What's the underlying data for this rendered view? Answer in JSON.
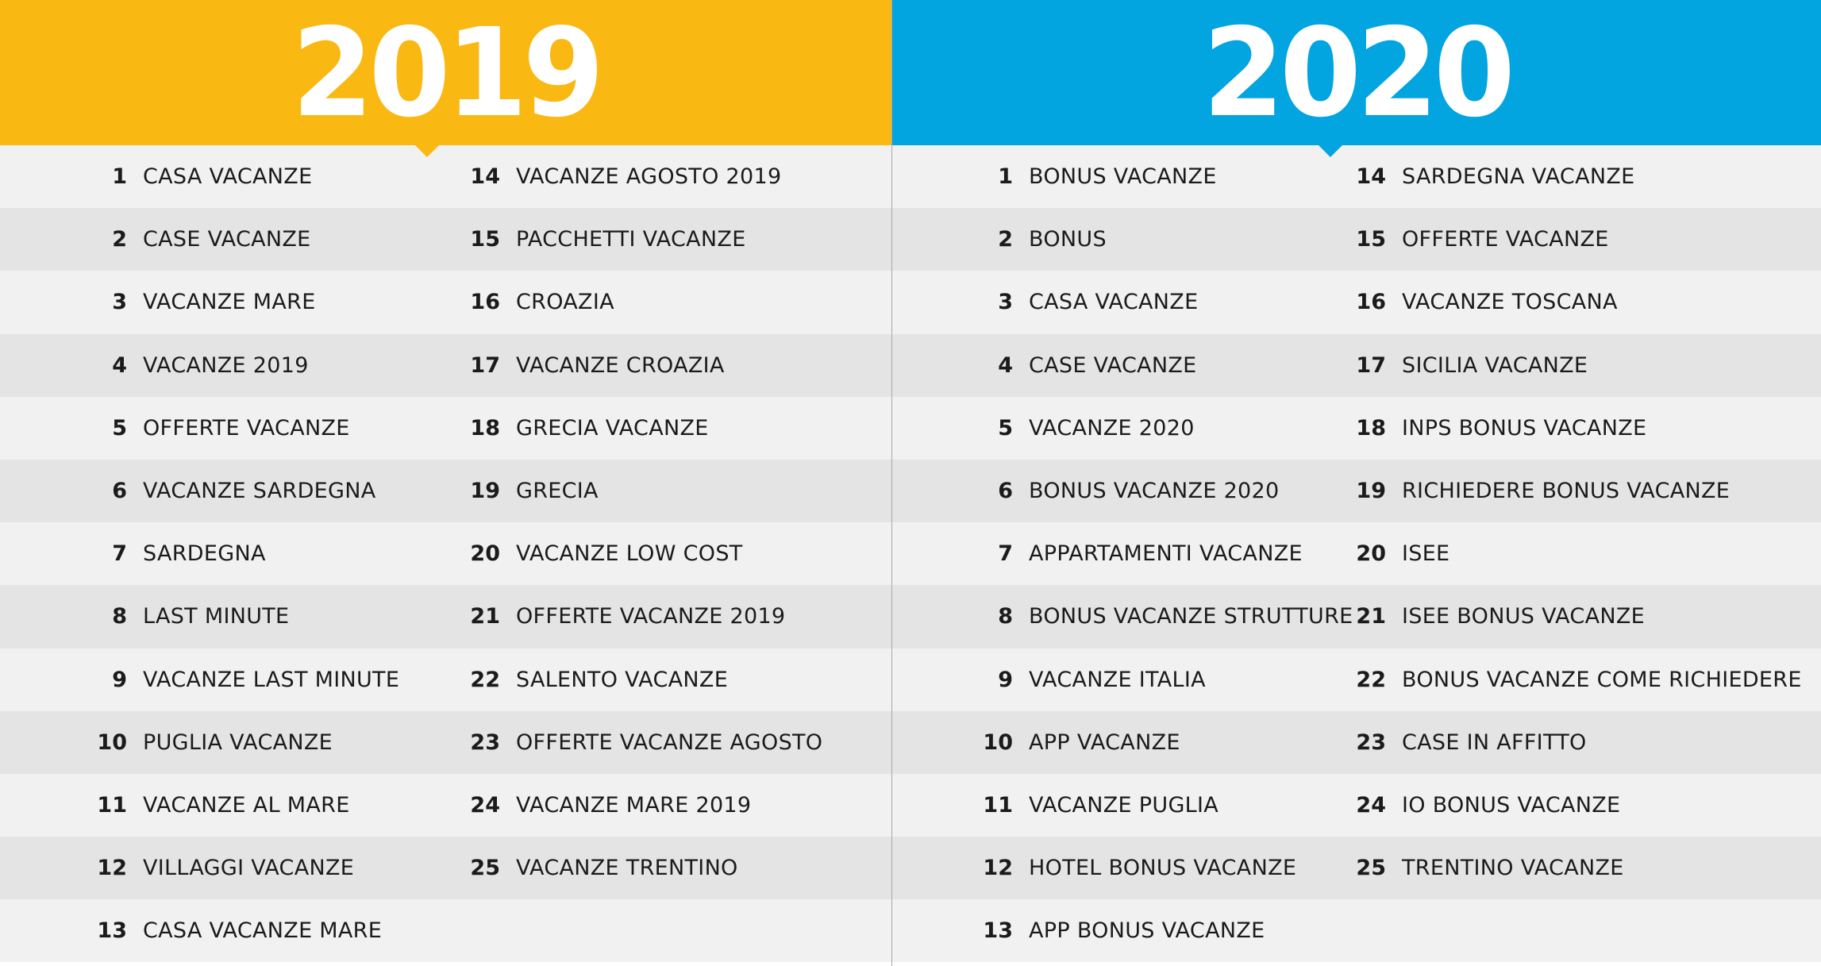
{
  "colors": {
    "panel_2019": "#fab812",
    "panel_2020": "#02a5e0",
    "row_light": "#f1f1f1",
    "row_dark": "#e4e4e4",
    "text": "#1b1b1b"
  },
  "panel_2019": {
    "year": "2019",
    "col1": [
      {
        "n": "1",
        "label": "CASA VACANZE"
      },
      {
        "n": "2",
        "label": "CASE VACANZE"
      },
      {
        "n": "3",
        "label": "VACANZE MARE"
      },
      {
        "n": "4",
        "label": "VACANZE 2019"
      },
      {
        "n": "5",
        "label": "OFFERTE VACANZE"
      },
      {
        "n": "6",
        "label": "VACANZE SARDEGNA"
      },
      {
        "n": "7",
        "label": "SARDEGNA"
      },
      {
        "n": "8",
        "label": "LAST MINUTE"
      },
      {
        "n": "9",
        "label": "VACANZE LAST MINUTE"
      },
      {
        "n": "10",
        "label": "PUGLIA VACANZE"
      },
      {
        "n": "11",
        "label": "VACANZE AL MARE"
      },
      {
        "n": "12",
        "label": "VILLAGGI VACANZE"
      },
      {
        "n": "13",
        "label": "CASA VACANZE MARE"
      }
    ],
    "col2": [
      {
        "n": "14",
        "label": "VACANZE AGOSTO 2019"
      },
      {
        "n": "15",
        "label": "PACCHETTI VACANZE"
      },
      {
        "n": "16",
        "label": "CROAZIA"
      },
      {
        "n": "17",
        "label": "VACANZE CROAZIA"
      },
      {
        "n": "18",
        "label": "GRECIA VACANZE"
      },
      {
        "n": "19",
        "label": "GRECIA"
      },
      {
        "n": "20",
        "label": "VACANZE LOW COST"
      },
      {
        "n": "21",
        "label": "OFFERTE VACANZE 2019"
      },
      {
        "n": "22",
        "label": "SALENTO VACANZE"
      },
      {
        "n": "23",
        "label": "OFFERTE VACANZE AGOSTO"
      },
      {
        "n": "24",
        "label": "VACANZE MARE 2019"
      },
      {
        "n": "25",
        "label": "VACANZE TRENTINO"
      }
    ]
  },
  "panel_2020": {
    "year": "2020",
    "col1": [
      {
        "n": "1",
        "label": "BONUS VACANZE"
      },
      {
        "n": "2",
        "label": "BONUS"
      },
      {
        "n": "3",
        "label": "CASA VACANZE"
      },
      {
        "n": "4",
        "label": "CASE VACANZE"
      },
      {
        "n": "5",
        "label": "VACANZE 2020"
      },
      {
        "n": "6",
        "label": "BONUS VACANZE 2020"
      },
      {
        "n": "7",
        "label": "APPARTAMENTI VACANZE"
      },
      {
        "n": "8",
        "label": "BONUS VACANZE STRUTTURE"
      },
      {
        "n": "9",
        "label": "VACANZE ITALIA"
      },
      {
        "n": "10",
        "label": "APP VACANZE"
      },
      {
        "n": "11",
        "label": "VACANZE PUGLIA"
      },
      {
        "n": "12",
        "label": "HOTEL BONUS VACANZE"
      },
      {
        "n": "13",
        "label": "APP BONUS VACANZE"
      }
    ],
    "col2": [
      {
        "n": "14",
        "label": "SARDEGNA VACANZE"
      },
      {
        "n": "15",
        "label": "OFFERTE VACANZE"
      },
      {
        "n": "16",
        "label": "VACANZE TOSCANA"
      },
      {
        "n": "17",
        "label": "SICILIA VACANZE"
      },
      {
        "n": "18",
        "label": "INPS BONUS VACANZE"
      },
      {
        "n": "19",
        "label": "RICHIEDERE BONUS VACANZE"
      },
      {
        "n": "20",
        "label": "ISEE"
      },
      {
        "n": "21",
        "label": "ISEE BONUS VACANZE"
      },
      {
        "n": "22",
        "label": "BONUS VACANZE COME RICHIEDERE"
      },
      {
        "n": "23",
        "label": "CASE IN AFFITTO"
      },
      {
        "n": "24",
        "label": "IO BONUS VACANZE"
      },
      {
        "n": "25",
        "label": "TRENTINO VACANZE"
      }
    ]
  }
}
